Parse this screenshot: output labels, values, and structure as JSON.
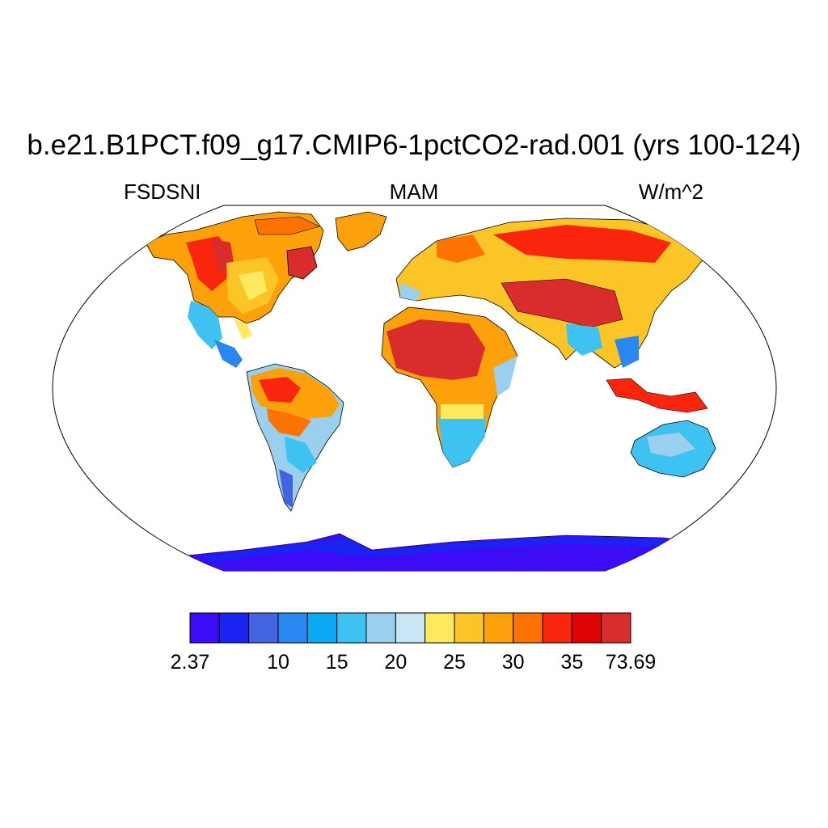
{
  "header": {
    "title": "b.e21.B1PCT.f09_g17.CMIP6-1pctCO2-rad.001 (yrs 100-124)",
    "variable": "FSDSNI",
    "season": "MAM",
    "units": "W/m^2"
  },
  "map": {
    "projection": "Robinson",
    "ocean_color": "#ffffff",
    "coastline_color": "#000000"
  },
  "colorbar": {
    "colors": [
      "#3b0cf5",
      "#1a23f2",
      "#4463e0",
      "#2a86f0",
      "#0aaaf5",
      "#3ec2f2",
      "#9ad0ee",
      "#c9e6f5",
      "#ffe95e",
      "#fcc527",
      "#fca10a",
      "#fc7302",
      "#f9250d",
      "#e00303",
      "#d92c2c"
    ],
    "labels": [
      {
        "text": "2.37",
        "boundary": 0
      },
      {
        "text": "10",
        "boundary": 3
      },
      {
        "text": "15",
        "boundary": 5
      },
      {
        "text": "20",
        "boundary": 7
      },
      {
        "text": "25",
        "boundary": 9
      },
      {
        "text": "30",
        "boundary": 11
      },
      {
        "text": "35",
        "boundary": 13
      },
      {
        "text": "73.69",
        "boundary": 15
      }
    ]
  }
}
